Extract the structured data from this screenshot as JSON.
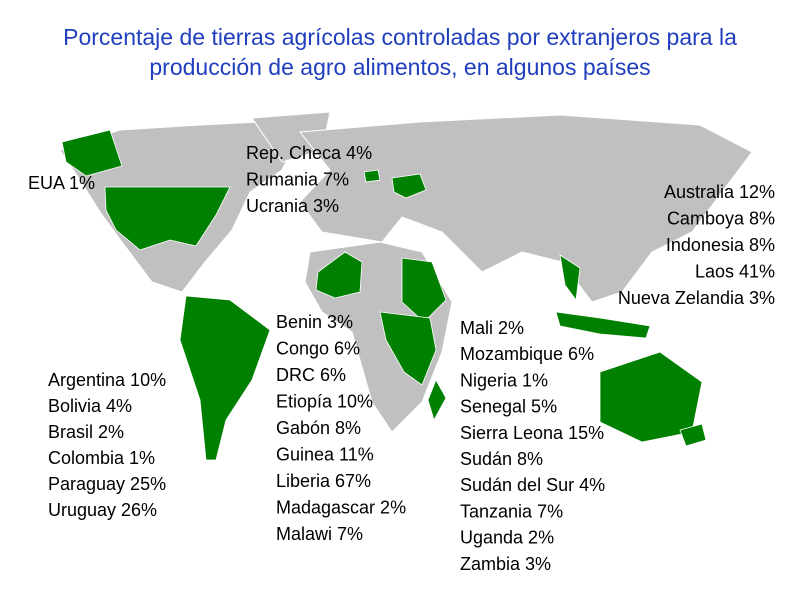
{
  "header": {
    "title_lines": [
      "Porcentaje de tierras agrícolas controladas por extranjeros para la",
      "producción de agro alimentos, en algunos países"
    ]
  },
  "groups": [
    {
      "items": [
        "EUA 1%"
      ]
    },
    {
      "items": [
        "Rep. Checa 4%",
        "Rumania 7%",
        "Ucrania 3%"
      ]
    },
    {
      "items": [
        "Australia 12%",
        "Camboya 8%",
        "Indonesia 8%",
        "Laos 41%",
        "Nueva Zelandia 3%"
      ]
    },
    {
      "items": [
        "Argentina 10%",
        "Bolivia 4%",
        "Brasil 2%",
        "Colombia 1%",
        "Paraguay 25%",
        "Uruguay 26%"
      ]
    },
    {
      "items": [
        "Benin 3%",
        "Congo 6%",
        "DRC 6%",
        "Etiopía 10%",
        "Gabón 8%",
        "Guinea 11%",
        "Liberia 67%",
        "Madagascar 2%",
        "Malawi 7%"
      ]
    },
    {
      "items": [
        "Mali 2%",
        "Mozambique 6%",
        "Nigeria 1%",
        "Senegal 5%",
        "Sierra Leona 15%",
        "Sudán 8%",
        "Sudán del Sur 4%",
        "Tanzania 7%",
        "Uganda 2%",
        "Zambia 3%"
      ]
    }
  ]
}
